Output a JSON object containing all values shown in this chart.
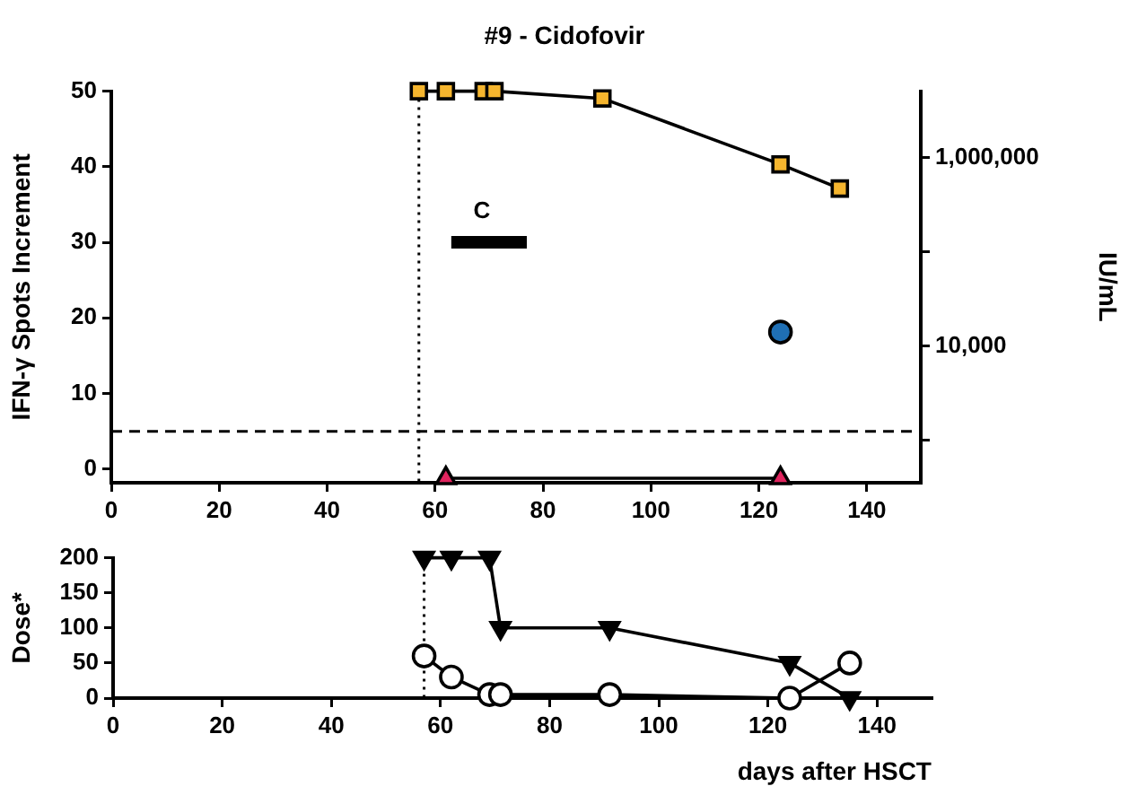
{
  "chart_data": [
    {
      "type": "line",
      "title": "#9 - Cidofovir",
      "ylabel": "IFN-γ Spots Increment",
      "y2label": "IU/mL",
      "annotations": [
        "C"
      ],
      "xlim": [
        0,
        150
      ],
      "xticks": [
        0,
        20,
        40,
        60,
        80,
        100,
        120,
        140
      ],
      "ylim": [
        -1.8,
        50
      ],
      "yticks": [
        0,
        10,
        20,
        30,
        40,
        50
      ],
      "log": "y2",
      "y2lim": [
        350,
        5100000
      ],
      "y2ticks": [
        {
          "value": 1000,
          "label": null
        },
        {
          "value": 10000,
          "label": "10,000"
        },
        {
          "value": 100000,
          "label": null
        },
        {
          "value": 1000000,
          "label": "1,000,000"
        }
      ],
      "grid": false,
      "legend": false,
      "ref_lines": [
        {
          "axis": "y",
          "value": 5,
          "line_style": "dashed",
          "color": "#000000"
        },
        {
          "axis": "x",
          "value": 57,
          "line_style": "dotted",
          "color": "#000000"
        }
      ],
      "series": [
        {
          "type": "line",
          "axis": "y2",
          "marker": "square",
          "color": "#f5b52e",
          "x": [
            57,
            62,
            69,
            71,
            91,
            124,
            135
          ],
          "values": [
            5100000,
            5100000,
            5100000,
            5100000,
            4270000,
            850000,
            470000
          ]
        },
        {
          "type": "scatter",
          "axis": "y2",
          "marker": "circle",
          "color": "#1f6fb4",
          "x": [
            124
          ],
          "values": [
            14000
          ]
        },
        {
          "type": "line",
          "marker": "triangle",
          "color": "#e0245e",
          "x": [
            62,
            124
          ],
          "values": [
            -1.2,
            -1.2
          ]
        },
        {
          "type": "line",
          "marker": "none",
          "color": "#000000",
          "x": [
            63,
            77
          ],
          "values": [
            30,
            30
          ]
        }
      ]
    },
    {
      "type": "line",
      "ylabel": "Dose*",
      "xlabel": "days after HSCT",
      "xlim": [
        0,
        150
      ],
      "xticks": [
        0,
        20,
        40,
        60,
        80,
        100,
        120,
        140
      ],
      "ylim": [
        0,
        200
      ],
      "yticks": [
        0,
        50,
        100,
        150,
        200
      ],
      "grid": false,
      "legend": false,
      "ref_lines": [
        {
          "axis": "x",
          "value": 57,
          "line_style": "dotted",
          "color": "#000000"
        }
      ],
      "series": [
        {
          "type": "line",
          "marker": "triangle",
          "color": "#000000",
          "x": [
            57,
            62,
            69,
            71,
            91,
            124,
            135
          ],
          "values": [
            200,
            200,
            200,
            100,
            100,
            50,
            0
          ]
        },
        {
          "type": "line",
          "marker": "circle",
          "color": "#ffffff",
          "x": [
            57,
            62,
            69,
            71,
            91,
            124,
            135
          ],
          "values": [
            60,
            30,
            5,
            5,
            5,
            0,
            50
          ]
        }
      ]
    }
  ]
}
